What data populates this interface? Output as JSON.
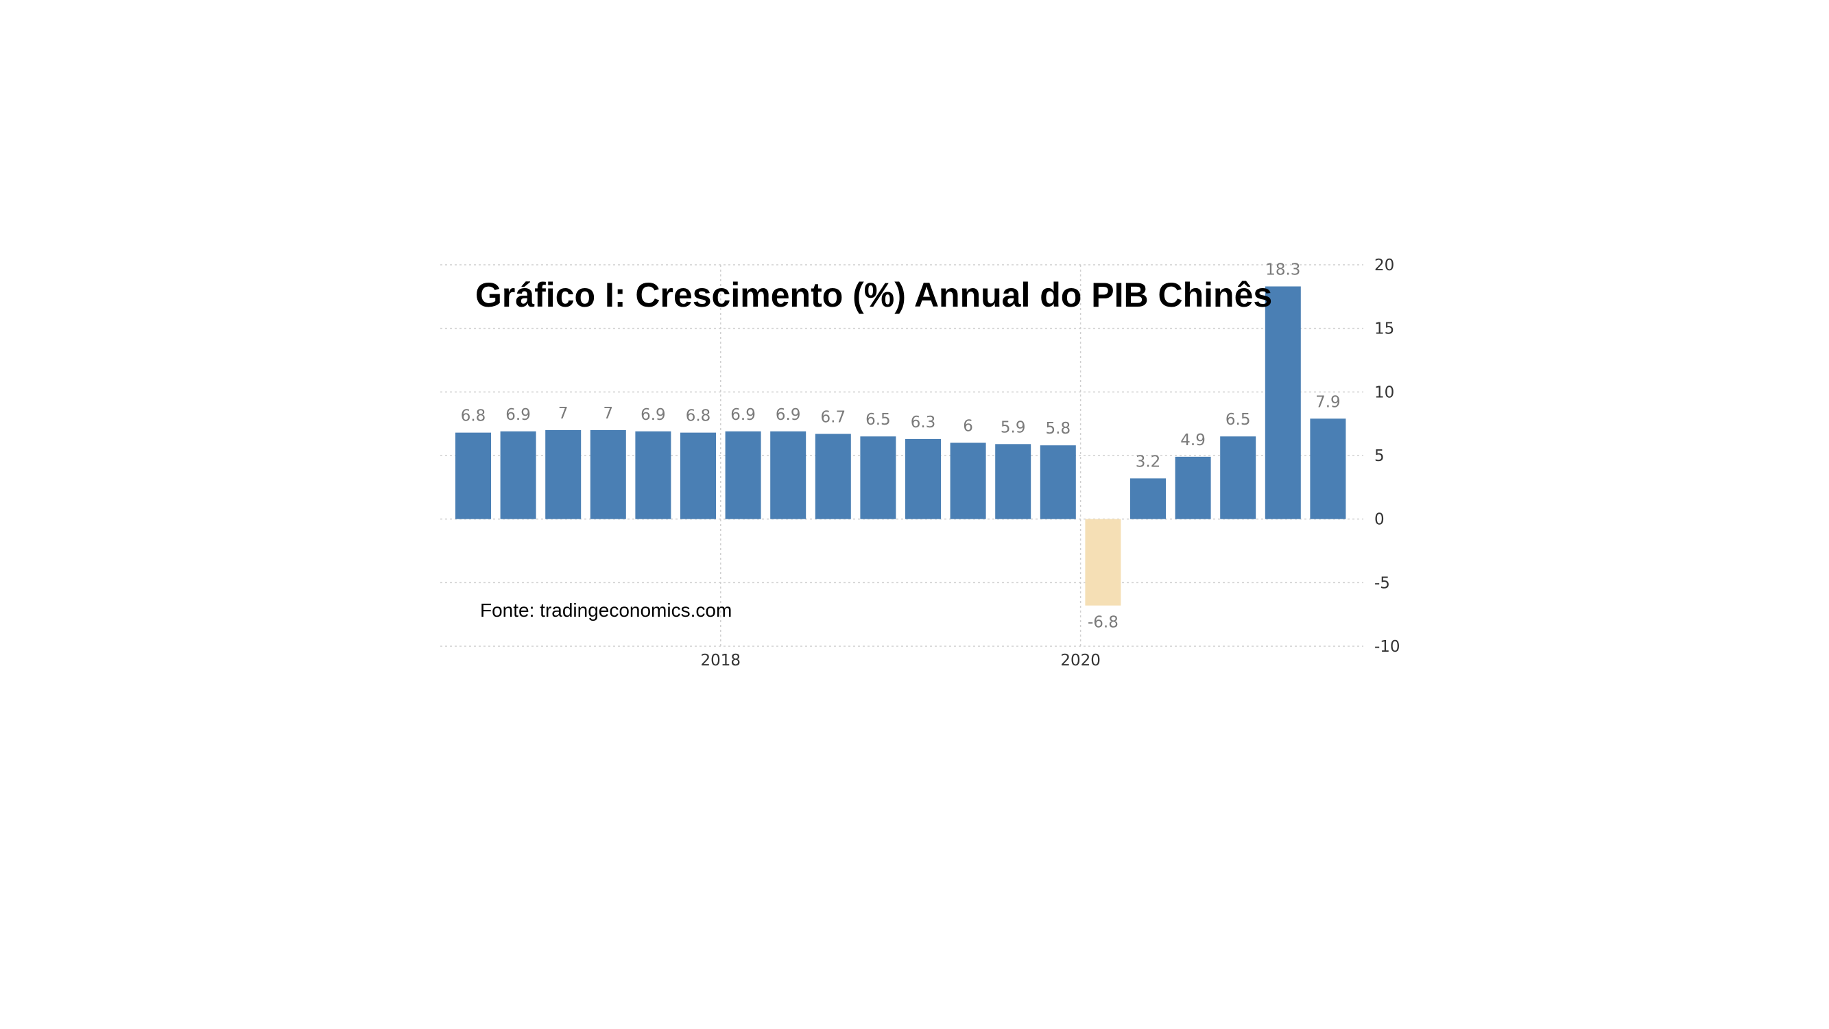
{
  "chart_data": {
    "type": "bar",
    "title": "Gráfico I: Crescimento (%) Annual do PIB Chinês",
    "source": "Fonte: tradingeconomics.com",
    "y_axis_side": "right",
    "ylim": [
      -10,
      20
    ],
    "y_ticks": [
      "20",
      "15",
      "10",
      "5",
      "0",
      "-5",
      "-10"
    ],
    "y_tick_values": [
      20,
      15,
      10,
      5,
      0,
      -5,
      -10
    ],
    "x_ticks": [
      {
        "label": "2018",
        "after_bar_index": 5
      },
      {
        "label": "2020",
        "after_bar_index": 13
      }
    ],
    "grid": true,
    "colors": {
      "positive": "#4a7fb4",
      "negative": "#f5dfb5"
    },
    "values": [
      6.8,
      6.9,
      7,
      7,
      6.9,
      6.8,
      6.9,
      6.9,
      6.7,
      6.5,
      6.3,
      6,
      5.9,
      5.8,
      -6.8,
      3.2,
      4.9,
      6.5,
      18.3,
      7.9
    ],
    "value_labels": [
      "6.8",
      "6.9",
      "7",
      "7",
      "6.9",
      "6.8",
      "6.9",
      "6.9",
      "6.7",
      "6.5",
      "6.3",
      "6",
      "5.9",
      "5.8",
      "-6.8",
      "3.2",
      "4.9",
      "6.5",
      "18.3",
      "7.9"
    ]
  }
}
